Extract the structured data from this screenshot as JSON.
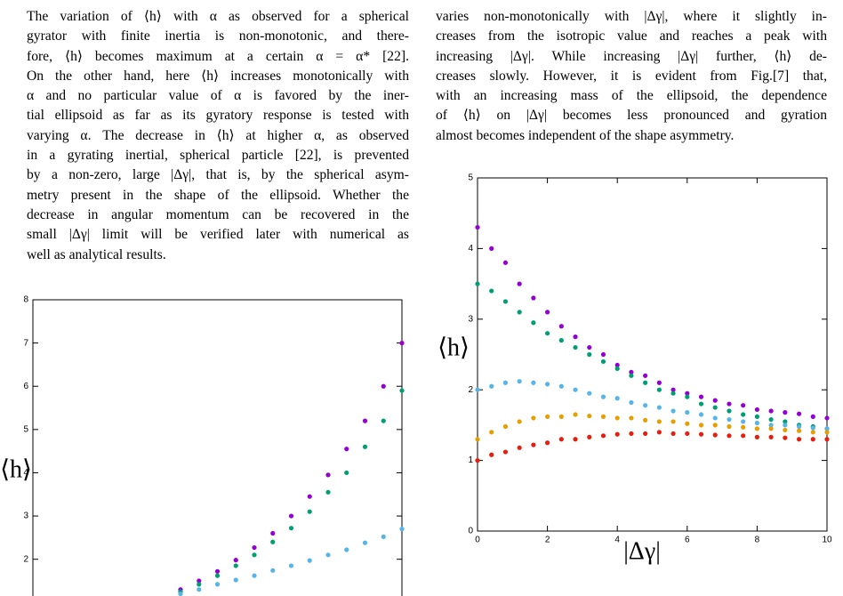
{
  "text": {
    "left": [
      "The variation of ⟨h⟩ with α as observed for a spherical",
      "gyrator with finite inertia is non-monotonic, and there-",
      "fore, ⟨h⟩ becomes maximum at a certain α = α* [22].",
      "On the other hand, here ⟨h⟩ increases monotonically with",
      "α and no particular value of α is favored by the iner-",
      "tial ellipsoid as far as its gyratory response is tested with",
      "varying α. The decrease in ⟨h⟩ at higher α, as observed",
      "in a gyrating inertial, spherical particle [22], is prevented",
      "by a non-zero, large |Δγ|, that is, by the spherical asym-",
      "metry present in the shape of the ellipsoid. Whether the",
      "decrease in angular momentum can be recovered in the",
      "small |Δγ| limit will be verified later with numerical as",
      "well as analytical results."
    ],
    "right": [
      "varies non-monotonically with |Δγ|, where it slightly in-",
      "creases from the isotropic value and reaches a peak with",
      "increasing |Δγ|. While increasing |Δγ| further, ⟨h⟩ de-",
      "creases slowly. However, it is evident from Fig.[7] that,",
      "with an increasing mass of the ellipsoid, the dependence",
      "of ⟨h⟩ on |Δγ| becomes less pronounced and gyration",
      "almost becomes independent of the shape asymmetry."
    ]
  },
  "chart_data": [
    {
      "type": "scatter",
      "y_label": "⟨h⟩",
      "xlim": [
        0,
        10
      ],
      "ylim": [
        1.15,
        8
      ],
      "yticks": [
        2,
        3,
        4,
        5,
        6,
        7,
        8
      ],
      "x": [
        4,
        4.5,
        5,
        5.5,
        6,
        6.5,
        7,
        7.5,
        8,
        8.5,
        9,
        9.5,
        10
      ],
      "series": [
        {
          "color": "#9400d3",
          "values": [
            1.3,
            1.5,
            1.72,
            1.98,
            2.27,
            2.6,
            3.0,
            3.45,
            3.95,
            4.55,
            5.2,
            6.0,
            7.0
          ]
        },
        {
          "color": "#009e73",
          "values": [
            1.25,
            1.42,
            1.62,
            1.85,
            2.1,
            2.4,
            2.72,
            3.1,
            3.55,
            4.0,
            4.6,
            5.2,
            5.9
          ]
        },
        {
          "color": "#56b4e9",
          "values": [
            1.2,
            1.3,
            1.42,
            1.52,
            1.62,
            1.74,
            1.85,
            1.97,
            2.1,
            2.22,
            2.38,
            2.52,
            2.7
          ]
        }
      ]
    },
    {
      "type": "scatter",
      "y_label": "⟨h⟩",
      "x_label": "|Δγ|",
      "xlim": [
        0,
        10
      ],
      "ylim": [
        0,
        5
      ],
      "xticks": [
        0,
        2,
        4,
        6,
        8,
        10
      ],
      "yticks": [
        0,
        1,
        2,
        3,
        4,
        5
      ],
      "x": [
        0,
        0.4,
        0.8,
        1.2,
        1.6,
        2.0,
        2.4,
        2.8,
        3.2,
        3.6,
        4.0,
        4.4,
        4.8,
        5.2,
        5.6,
        6.0,
        6.4,
        6.8,
        7.2,
        7.6,
        8.0,
        8.4,
        8.8,
        9.2,
        9.6,
        10
      ],
      "series": [
        {
          "color": "#9400d3",
          "values": [
            4.3,
            4.0,
            3.8,
            3.5,
            3.3,
            3.1,
            2.9,
            2.75,
            2.6,
            2.5,
            2.35,
            2.25,
            2.2,
            2.1,
            2.0,
            1.95,
            1.9,
            1.85,
            1.8,
            1.78,
            1.72,
            1.7,
            1.68,
            1.66,
            1.62,
            1.6
          ]
        },
        {
          "color": "#009e73",
          "values": [
            3.5,
            3.4,
            3.25,
            3.1,
            2.95,
            2.8,
            2.7,
            2.6,
            2.5,
            2.4,
            2.3,
            2.2,
            2.1,
            2.0,
            1.95,
            1.9,
            1.8,
            1.75,
            1.7,
            1.65,
            1.62,
            1.58,
            1.55,
            1.5,
            1.48,
            1.45
          ]
        },
        {
          "color": "#56b4e9",
          "values": [
            2.0,
            2.05,
            2.1,
            2.12,
            2.1,
            2.08,
            2.05,
            2.0,
            1.95,
            1.9,
            1.88,
            1.82,
            1.78,
            1.75,
            1.7,
            1.68,
            1.65,
            1.6,
            1.58,
            1.55,
            1.53,
            1.5,
            1.5,
            1.48,
            1.46,
            1.45
          ]
        },
        {
          "color": "#e69f00",
          "values": [
            1.3,
            1.4,
            1.48,
            1.55,
            1.6,
            1.62,
            1.62,
            1.65,
            1.63,
            1.62,
            1.6,
            1.6,
            1.57,
            1.55,
            1.55,
            1.52,
            1.5,
            1.5,
            1.48,
            1.47,
            1.45,
            1.45,
            1.43,
            1.42,
            1.4,
            1.4
          ]
        },
        {
          "color": "#e51e10",
          "values": [
            1.0,
            1.08,
            1.12,
            1.18,
            1.22,
            1.25,
            1.3,
            1.3,
            1.33,
            1.35,
            1.37,
            1.38,
            1.38,
            1.4,
            1.38,
            1.38,
            1.37,
            1.36,
            1.35,
            1.35,
            1.33,
            1.33,
            1.32,
            1.3,
            1.3,
            1.3
          ]
        }
      ]
    }
  ]
}
